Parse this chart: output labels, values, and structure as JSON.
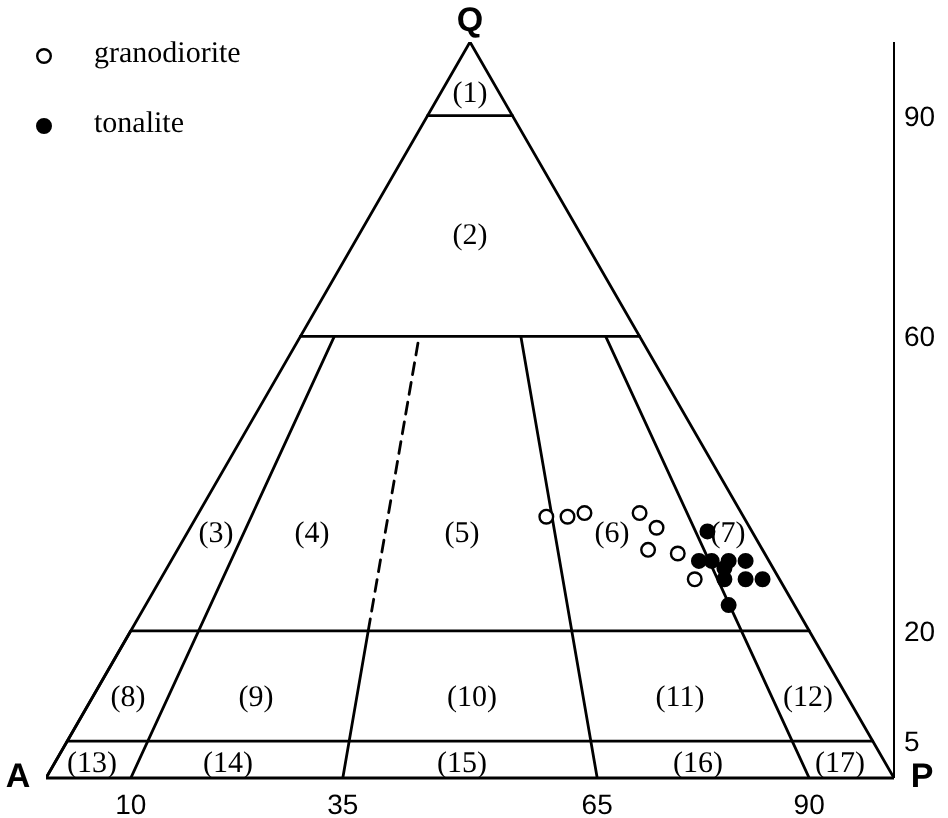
{
  "chart_data": {
    "type": "scatter",
    "legend": "top left",
    "marker": "circle",
    "line_style": "solid",
    "xlim": [
      0,
      100
    ],
    "ylim": [
      0,
      100
    ],
    "xticks": [
      10,
      35,
      65,
      90
    ],
    "yticks": [
      5,
      20,
      60,
      90
    ],
    "series": [
      {
        "type": "line",
        "color": "#000000",
        "marker": "none",
        "x": [
          0,
          50,
          100
        ],
        "values": [
          0,
          100,
          0
        ]
      },
      {
        "type": "line",
        "color": "#000000",
        "marker": "none",
        "x": [
          2.5,
          10,
          90
        ],
        "values": [
          5,
          20,
          20
        ]
      },
      {
        "type": "line",
        "color": "#000000",
        "marker": "none",
        "x": [
          0,
          2.5,
          97.5
        ],
        "values": [
          0,
          5,
          5
        ]
      },
      {
        "type": "line",
        "color": "#000000",
        "marker": "none",
        "x": [
          30,
          70
        ],
        "values": [
          60,
          60
        ]
      },
      {
        "type": "line",
        "color": "#000000",
        "marker": "none",
        "x": [
          45,
          55
        ],
        "values": [
          90,
          90
        ]
      },
      {
        "type": "line",
        "color": "#000000",
        "marker": "none",
        "x": [
          10,
          34
        ],
        "values": [
          0,
          60
        ]
      },
      {
        "type": "line",
        "color": "#000000",
        "marker": "none",
        "x": [
          35,
          38
        ],
        "values": [
          0,
          20
        ]
      },
      {
        "type": "line",
        "color": "#000000",
        "marker": "none",
        "line_style": "dashed",
        "x": [
          38,
          44
        ],
        "values": [
          20,
          60
        ]
      },
      {
        "type": "line",
        "color": "#000000",
        "marker": "none",
        "x": [
          56,
          65
        ],
        "values": [
          60,
          0
        ]
      },
      {
        "type": "line",
        "color": "#000000",
        "marker": "none",
        "x": [
          66,
          90
        ],
        "values": [
          60,
          0
        ]
      },
      {
        "name": "granodiorite",
        "color": "#ffffff",
        "x": [
          59,
          61.5,
          63.5,
          70,
          72,
          71,
          74.5,
          76.5
        ],
        "values": [
          35.5,
          35.5,
          36,
          36,
          34,
          31,
          30.5,
          27
        ]
      },
      {
        "name": "tonalite",
        "color": "#000000",
        "x": [
          78,
          77,
          78.5,
          80.5,
          82.5,
          80,
          80,
          82.5,
          84.5,
          80.5
        ],
        "values": [
          33.5,
          29.5,
          29.5,
          29.5,
          29.5,
          28.5,
          27,
          27,
          27,
          23.5
        ]
      }
    ],
    "annotations": [
      {
        "text": "Q",
        "x": 50,
        "y": 100
      },
      {
        "text": "A",
        "x": 0,
        "y": 0
      },
      {
        "text": "P",
        "x": 100,
        "y": 0
      },
      "(1)",
      "(2)",
      "(3)",
      "(4)",
      "(5)",
      "(6)",
      "(7)",
      "(8)",
      "(9)",
      "(10)",
      "(11)",
      "(12)",
      "(13)",
      "(14)",
      "(15)",
      "(16)",
      "(17)"
    ]
  }
}
